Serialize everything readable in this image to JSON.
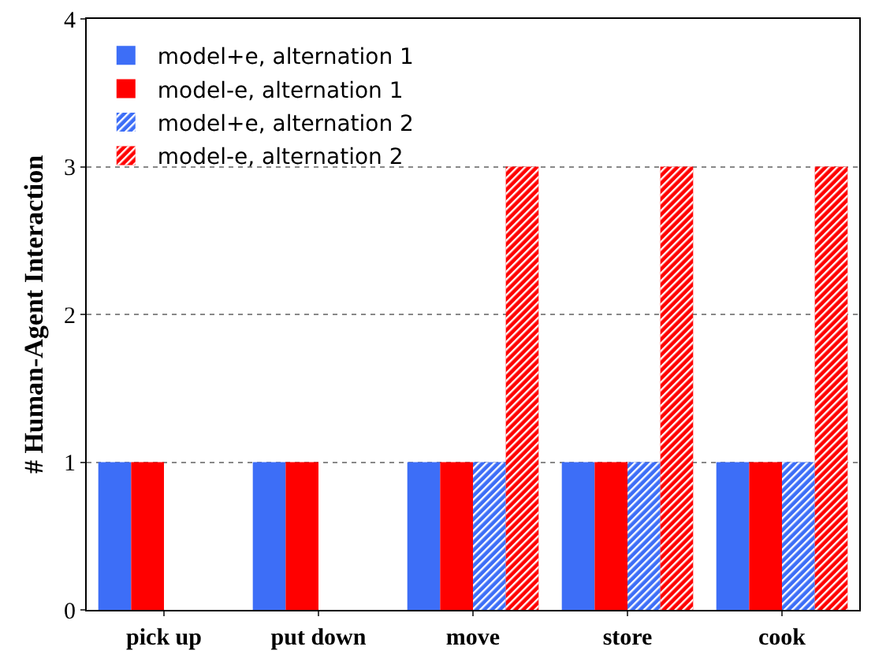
{
  "chart_data": {
    "type": "bar",
    "ylabel": "# Human-Agent Interaction",
    "categories": [
      "pick up",
      "put down",
      "move",
      "store",
      "cook"
    ],
    "series": [
      {
        "name": "model+e, alternation 1",
        "color": "#3d6ef7",
        "values": [
          1,
          1,
          1,
          1,
          1
        ]
      },
      {
        "name": "model-e, alternation 1",
        "color": "#ff0000",
        "values": [
          1,
          1,
          1,
          1,
          1
        ]
      },
      {
        "name": "model+e, alternation 2",
        "color": "#3d6ef7",
        "values": [
          null,
          null,
          1,
          1,
          1
        ]
      },
      {
        "name": "model-e, alternation 2",
        "color": "#ff0000",
        "values": [
          null,
          null,
          3,
          3,
          3
        ]
      }
    ],
    "ylim": [
      0,
      4
    ],
    "yticks": [
      0,
      1,
      2,
      3,
      4
    ],
    "grid": "y",
    "legend": "top left"
  }
}
